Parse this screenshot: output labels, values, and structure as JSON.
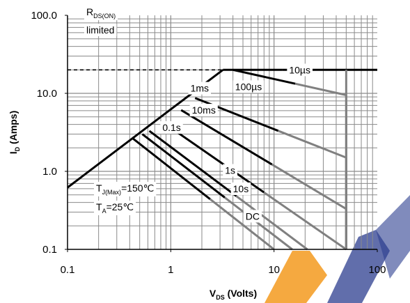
{
  "chart_data": {
    "type": "line",
    "title": "",
    "xlabel": "V",
    "xlabel_sub": "DS",
    "xlabel_tail": " (Volts)",
    "ylabel": "I",
    "ylabel_sub": "D",
    "ylabel_tail": " (Amps)",
    "x_scale": "log",
    "y_scale": "log",
    "xlim": [
      0.1,
      100
    ],
    "ylim": [
      0.1,
      100
    ],
    "grid": true,
    "x_ticks": [
      {
        "value": 0.1,
        "label": "0.1"
      },
      {
        "value": 1,
        "label": "1"
      },
      {
        "value": 10,
        "label": "10"
      },
      {
        "value": 100,
        "label": "100"
      }
    ],
    "y_ticks": [
      {
        "value": 0.1,
        "label": "0.1"
      },
      {
        "value": 1,
        "label": "1.0"
      },
      {
        "value": 10,
        "label": "10.0"
      },
      {
        "value": 100,
        "label": "100.0"
      }
    ],
    "rds_limit_line": {
      "y": 20,
      "x": [
        0.1,
        3.2
      ]
    },
    "rds_envelope": {
      "points": [
        [
          0.1,
          0.62
        ],
        [
          3.2,
          20
        ]
      ]
    },
    "series": [
      {
        "name": "10µs",
        "points": [
          [
            3.2,
            20
          ],
          [
            12,
            20
          ],
          [
            50,
            20
          ],
          [
            100,
            20
          ]
        ]
      },
      {
        "name": "100µs",
        "points": [
          [
            4,
            20
          ],
          [
            50,
            9.5
          ],
          [
            50,
            0.1
          ]
        ]
      },
      {
        "name": "1ms",
        "points": [
          [
            1.72,
            8.7
          ],
          [
            50,
            1.5
          ],
          [
            50,
            0.1
          ]
        ]
      },
      {
        "name": "10ms",
        "points": [
          [
            1.26,
            6.1
          ],
          [
            50,
            0.33
          ],
          [
            50,
            0.1
          ]
        ]
      },
      {
        "name": "0.1s",
        "points": [
          [
            0.85,
            4.2
          ],
          [
            50,
            0.09
          ]
        ]
      },
      {
        "name": "1s",
        "points": [
          [
            0.62,
            3.3
          ],
          [
            21,
            0.09
          ]
        ]
      },
      {
        "name": "10s",
        "points": [
          [
            0.53,
            3.0
          ],
          [
            15,
            0.09
          ]
        ]
      },
      {
        "name": "DC",
        "points": [
          [
            0.42,
            2.7
          ],
          [
            10,
            0.09
          ]
        ]
      }
    ],
    "series_labels": [
      {
        "text": "10µs",
        "x": 14,
        "y": 18
      },
      {
        "text": "100µs",
        "x": 4.2,
        "y": 11
      },
      {
        "text": "1ms",
        "x": 1.55,
        "y": 10.5
      },
      {
        "text": "10ms",
        "x": 1.6,
        "y": 5.5
      },
      {
        "text": "0.1s",
        "x": 0.83,
        "y": 3.3
      },
      {
        "text": "1s",
        "x": 3.35,
        "y": 0.93
      },
      {
        "text": "10s",
        "x": 4.0,
        "y": 0.54
      },
      {
        "text": "DC",
        "x": 5.3,
        "y": 0.24
      }
    ],
    "annotations": {
      "rds_on": {
        "main": "R",
        "sub": "DS(ON)",
        "line2": "limited"
      },
      "tj": {
        "main": "T",
        "sub": "J(Max)",
        "tail": "=150℃"
      },
      "ta": {
        "main": "T",
        "sub": "A",
        "tail": "=25℃"
      }
    },
    "colors": {
      "grid": "#8a8a8a",
      "curve": "#000000",
      "gray_segment": "#808080",
      "watermark_orange": "#f39a1e",
      "watermark_blue": "#2c3e8f"
    }
  }
}
